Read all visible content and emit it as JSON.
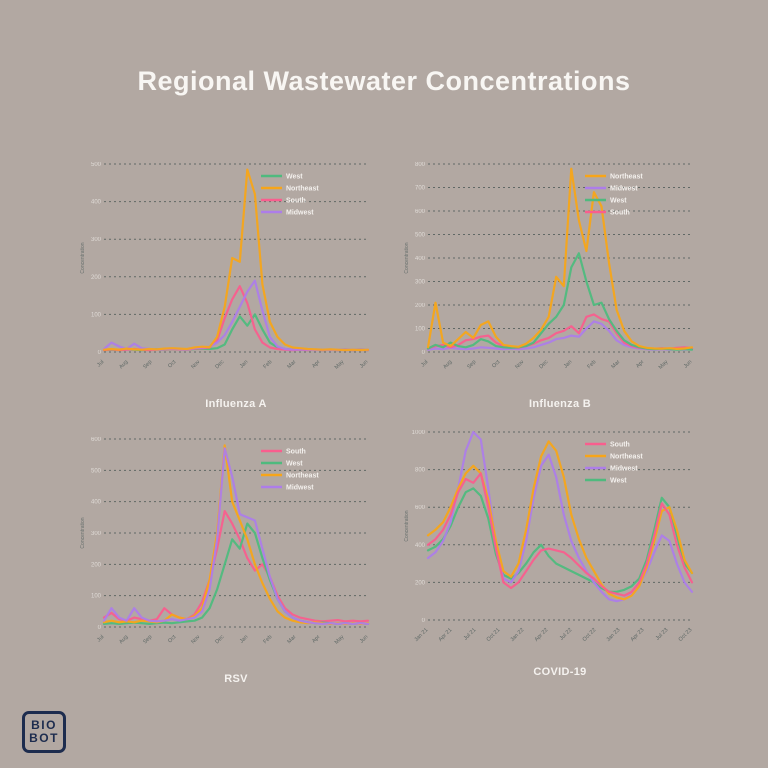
{
  "page": {
    "title": "Regional Wastewater Concentrations",
    "background_color": "#b2a8a2"
  },
  "logo": {
    "line1": "BIO",
    "line2": "BOT",
    "color": "#1d2c4e"
  },
  "colors": {
    "West": "#4fba7e",
    "Northeast": "#f7a519",
    "South": "#f95e8e",
    "Midwest": "#ad7de9",
    "grid": "#3e4d4c",
    "ytick_text": "#e7e3df",
    "xtick_text": "#55615f",
    "legend_text": "#f4f1ee",
    "title_text": "#f8f6f3"
  },
  "chart_data": [
    {
      "type": "line",
      "title": "Influenza A",
      "ylabel": "Concentration",
      "ylim": [
        0,
        500
      ],
      "yticks": [
        0,
        100,
        200,
        300,
        400,
        500
      ],
      "xticklabels": [
        "Jul",
        "Aug",
        "Sep",
        "Oct",
        "Nov",
        "Dec",
        "Jan",
        "Feb",
        "Mar",
        "Apr",
        "May",
        "Jun"
      ],
      "grid": true,
      "legend_position": "top-right",
      "legend": [
        "West",
        "Northeast",
        "South",
        "Midwest"
      ],
      "series": [
        {
          "name": "West",
          "values": [
            5,
            6,
            5,
            7,
            6,
            5,
            6,
            7,
            6,
            8,
            7,
            6,
            8,
            9,
            8,
            10,
            20,
            60,
            95,
            70,
            100,
            60,
            25,
            12,
            8,
            6,
            7,
            5,
            6,
            5,
            6,
            5,
            6,
            5,
            6,
            5
          ]
        },
        {
          "name": "South",
          "values": [
            5,
            7,
            5,
            6,
            8,
            6,
            5,
            6,
            7,
            8,
            7,
            6,
            9,
            10,
            12,
            30,
            90,
            140,
            175,
            130,
            60,
            25,
            12,
            8,
            6,
            5,
            6,
            5,
            6,
            5,
            6,
            5,
            6,
            5,
            6,
            5
          ]
        },
        {
          "name": "Midwest",
          "values": [
            8,
            25,
            15,
            8,
            22,
            10,
            8,
            6,
            8,
            9,
            8,
            7,
            10,
            12,
            14,
            25,
            45,
            80,
            120,
            160,
            190,
            110,
            40,
            15,
            8,
            6,
            7,
            6,
            5,
            6,
            5,
            6,
            5,
            6,
            5,
            6
          ]
        },
        {
          "name": "Northeast",
          "values": [
            6,
            8,
            6,
            9,
            7,
            6,
            8,
            7,
            9,
            10,
            9,
            8,
            12,
            14,
            13,
            40,
            120,
            250,
            240,
            485,
            420,
            180,
            80,
            40,
            20,
            12,
            10,
            8,
            7,
            6,
            7,
            6,
            5,
            6,
            5,
            6
          ]
        }
      ]
    },
    {
      "type": "line",
      "title": "Influenza B",
      "ylabel": "Concentration",
      "ylim": [
        0,
        800
      ],
      "yticks": [
        0,
        100,
        200,
        300,
        400,
        500,
        600,
        700,
        800
      ],
      "xticklabels": [
        "Jul",
        "Aug",
        "Sep",
        "Oct",
        "Nov",
        "Dec",
        "Jan",
        "Feb",
        "Mar",
        "Apr",
        "May",
        "Jun"
      ],
      "grid": true,
      "legend_position": "top-right",
      "legend": [
        "Northeast",
        "Midwest",
        "West",
        "South"
      ],
      "series": [
        {
          "name": "Midwest",
          "values": [
            10,
            15,
            12,
            18,
            14,
            12,
            15,
            20,
            18,
            15,
            12,
            14,
            12,
            15,
            20,
            30,
            40,
            55,
            60,
            70,
            65,
            100,
            130,
            120,
            90,
            50,
            30,
            20,
            15,
            12,
            10,
            12,
            10,
            12,
            10,
            12
          ]
        },
        {
          "name": "South",
          "values": [
            15,
            25,
            30,
            20,
            30,
            50,
            55,
            65,
            70,
            40,
            25,
            20,
            18,
            25,
            35,
            50,
            60,
            80,
            90,
            110,
            80,
            150,
            160,
            140,
            130,
            80,
            40,
            25,
            18,
            15,
            14,
            16,
            14,
            18,
            20,
            16
          ]
        },
        {
          "name": "West",
          "values": [
            15,
            30,
            20,
            40,
            25,
            20,
            30,
            55,
            45,
            25,
            20,
            18,
            20,
            25,
            40,
            80,
            120,
            150,
            200,
            360,
            420,
            300,
            200,
            210,
            140,
            90,
            50,
            30,
            20,
            15,
            12,
            14,
            12,
            10,
            12,
            10
          ]
        },
        {
          "name": "Northeast",
          "values": [
            20,
            210,
            40,
            25,
            55,
            85,
            60,
            115,
            130,
            65,
            30,
            25,
            22,
            35,
            60,
            95,
            150,
            320,
            280,
            780,
            560,
            430,
            680,
            620,
            380,
            180,
            90,
            45,
            25,
            18,
            15,
            14,
            16,
            13,
            15,
            20
          ]
        }
      ]
    },
    {
      "type": "line",
      "title": "RSV",
      "ylabel": "Concentration",
      "ylim": [
        0,
        600
      ],
      "yticks": [
        0,
        100,
        200,
        300,
        400,
        500,
        600
      ],
      "xticklabels": [
        "Jul",
        "Aug",
        "Sep",
        "Oct",
        "Nov",
        "Dec",
        "Jan",
        "Feb",
        "Mar",
        "Apr",
        "May",
        "Jun"
      ],
      "grid": true,
      "legend_position": "top-right",
      "legend": [
        "South",
        "West",
        "Northeast",
        "Midwest"
      ],
      "series": [
        {
          "name": "South",
          "values": [
            30,
            45,
            25,
            20,
            30,
            25,
            20,
            25,
            60,
            40,
            30,
            25,
            40,
            80,
            150,
            250,
            370,
            330,
            280,
            220,
            180,
            200,
            160,
            100,
            60,
            40,
            30,
            25,
            20,
            18,
            20,
            22,
            18,
            20,
            18,
            20
          ]
        },
        {
          "name": "West",
          "values": [
            10,
            12,
            10,
            12,
            14,
            12,
            10,
            12,
            14,
            12,
            15,
            18,
            20,
            30,
            60,
            120,
            200,
            280,
            250,
            330,
            300,
            220,
            150,
            90,
            50,
            30,
            20,
            15,
            12,
            14,
            12,
            10,
            12,
            10,
            12,
            10
          ]
        },
        {
          "name": "Northeast",
          "values": [
            15,
            20,
            15,
            18,
            15,
            20,
            18,
            15,
            20,
            40,
            30,
            25,
            35,
            60,
            150,
            300,
            580,
            400,
            340,
            280,
            200,
            140,
            90,
            50,
            30,
            20,
            15,
            12,
            15,
            12,
            10,
            12,
            10,
            12,
            10,
            12
          ]
        },
        {
          "name": "Midwest",
          "values": [
            20,
            60,
            30,
            20,
            60,
            30,
            20,
            18,
            20,
            25,
            20,
            25,
            30,
            50,
            120,
            280,
            570,
            480,
            360,
            350,
            340,
            250,
            160,
            90,
            50,
            30,
            20,
            15,
            12,
            10,
            12,
            10,
            12,
            10,
            12,
            10
          ]
        }
      ]
    },
    {
      "type": "line",
      "title": "COVID-19",
      "ylabel": "Concentration",
      "ylim": [
        0,
        1000
      ],
      "yticks": [
        0,
        200,
        400,
        600,
        800,
        1000
      ],
      "xticklabels": [
        "Jan 21",
        "Apr 21",
        "Jul 21",
        "Oct 21",
        "Jan 22",
        "Apr 22",
        "Jul 22",
        "Oct 22",
        "Jan 23",
        "Apr 23",
        "Jul 23",
        "Oct 23"
      ],
      "grid": true,
      "legend_position": "top-right",
      "legend": [
        "South",
        "Northeast",
        "Midwest",
        "West"
      ],
      "series": [
        {
          "name": "West",
          "values": [
            370,
            390,
            430,
            500,
            600,
            680,
            700,
            660,
            540,
            350,
            240,
            220,
            250,
            300,
            360,
            400,
            340,
            300,
            280,
            260,
            240,
            220,
            200,
            170,
            150,
            150,
            160,
            180,
            220,
            320,
            480,
            650,
            600,
            450,
            300,
            250
          ]
        },
        {
          "name": "Midwest",
          "values": [
            330,
            360,
            420,
            520,
            700,
            900,
            1000,
            960,
            700,
            400,
            220,
            200,
            260,
            420,
            650,
            820,
            880,
            760,
            560,
            420,
            330,
            260,
            200,
            150,
            110,
            100,
            110,
            140,
            190,
            260,
            360,
            450,
            420,
            300,
            200,
            150
          ]
        },
        {
          "name": "Northeast",
          "values": [
            450,
            480,
            520,
            600,
            700,
            780,
            820,
            780,
            640,
            420,
            260,
            230,
            300,
            480,
            700,
            870,
            950,
            900,
            760,
            560,
            430,
            330,
            260,
            190,
            140,
            120,
            110,
            130,
            180,
            280,
            420,
            580,
            600,
            480,
            320,
            250
          ]
        },
        {
          "name": "South",
          "values": [
            400,
            430,
            480,
            560,
            680,
            750,
            730,
            780,
            600,
            380,
            200,
            170,
            200,
            260,
            320,
            370,
            380,
            370,
            360,
            330,
            290,
            250,
            220,
            180,
            150,
            140,
            130,
            150,
            200,
            300,
            450,
            620,
            560,
            400,
            280,
            200
          ]
        }
      ]
    }
  ]
}
